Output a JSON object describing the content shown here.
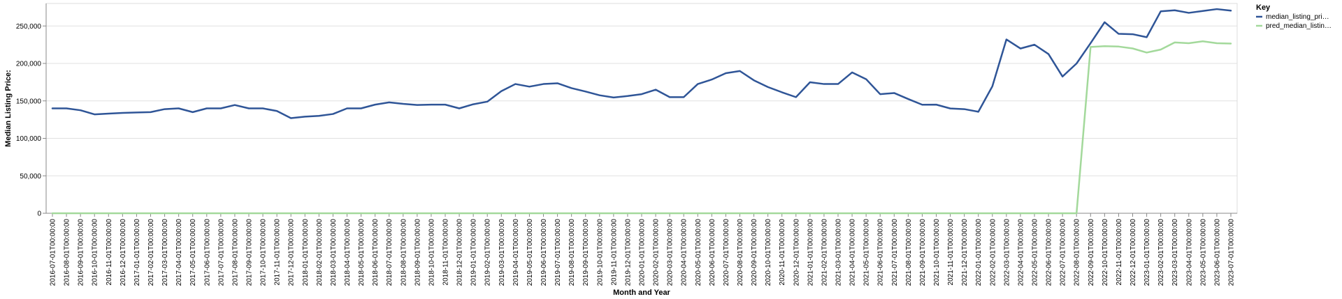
{
  "chart_data": {
    "type": "line",
    "xlabel": "Month and Year",
    "ylabel": "Median Listing Price:",
    "ylim": [
      0,
      280000
    ],
    "yticks": [
      0,
      50000,
      100000,
      150000,
      200000,
      250000
    ],
    "ytick_labels": [
      "0",
      "50,000",
      "100,000",
      "150,000",
      "200,000",
      "250,000"
    ],
    "grid": true,
    "legend": {
      "title": "Key",
      "placement": "top-right",
      "entries": [
        {
          "label": "median_listing_pri…",
          "color": "#2f5597"
        },
        {
          "label": "pred_median_listin…",
          "color": "#a3d99b"
        }
      ]
    },
    "x": [
      "2016-07-01T00:00:00",
      "2016-08-01T00:00:00",
      "2016-09-01T00:00:00",
      "2016-10-01T00:00:00",
      "2016-11-01T00:00:00",
      "2016-12-01T00:00:00",
      "2017-01-01T00:00:00",
      "2017-02-01T00:00:00",
      "2017-03-01T00:00:00",
      "2017-04-01T00:00:00",
      "2017-05-01T00:00:00",
      "2017-06-01T00:00:00",
      "2017-07-01T00:00:00",
      "2017-08-01T00:00:00",
      "2017-09-01T00:00:00",
      "2017-10-01T00:00:00",
      "2017-11-01T00:00:00",
      "2017-12-01T00:00:00",
      "2018-01-01T00:00:00",
      "2018-02-01T00:00:00",
      "2018-03-01T00:00:00",
      "2018-04-01T00:00:00",
      "2018-05-01T00:00:00",
      "2018-06-01T00:00:00",
      "2018-07-01T00:00:00",
      "2018-08-01T00:00:00",
      "2018-09-01T00:00:00",
      "2018-10-01T00:00:00",
      "2018-11-01T00:00:00",
      "2018-12-01T00:00:00",
      "2019-01-01T00:00:00",
      "2019-02-01T00:00:00",
      "2019-03-01T00:00:00",
      "2019-04-01T00:00:00",
      "2019-05-01T00:00:00",
      "2019-06-01T00:00:00",
      "2019-07-01T00:00:00",
      "2019-08-01T00:00:00",
      "2019-09-01T00:00:00",
      "2019-10-01T00:00:00",
      "2019-11-01T00:00:00",
      "2019-12-01T00:00:00",
      "2020-01-01T00:00:00",
      "2020-02-01T00:00:00",
      "2020-03-01T00:00:00",
      "2020-04-01T00:00:00",
      "2020-05-01T00:00:00",
      "2020-06-01T00:00:00",
      "2020-07-01T00:00:00",
      "2020-08-01T00:00:00",
      "2020-09-01T00:00:00",
      "2020-10-01T00:00:00",
      "2020-11-01T00:00:00",
      "2020-12-01T00:00:00",
      "2021-01-01T00:00:00",
      "2021-02-01T00:00:00",
      "2021-03-01T00:00:00",
      "2021-04-01T00:00:00",
      "2021-05-01T00:00:00",
      "2021-06-01T00:00:00",
      "2021-07-01T00:00:00",
      "2021-08-01T00:00:00",
      "2021-09-01T00:00:00",
      "2021-10-01T00:00:00",
      "2021-11-01T00:00:00",
      "2021-12-01T00:00:00",
      "2022-01-01T00:00:00",
      "2022-02-01T00:00:00",
      "2022-03-01T00:00:00",
      "2022-04-01T00:00:00",
      "2022-05-01T00:00:00",
      "2022-06-01T00:00:00",
      "2022-07-01T00:00:00",
      "2022-08-01T00:00:00",
      "2022-09-01T00:00:00",
      "2022-10-01T00:00:00",
      "2022-11-01T00:00:00",
      "2022-12-01T00:00:00",
      "2023-01-01T00:00:00",
      "2023-02-01T00:00:00",
      "2023-03-01T00:00:00",
      "2023-04-01T00:00:00",
      "2023-05-01T00:00:00",
      "2023-06-01T00:00:00",
      "2023-07-01T00:00:00"
    ],
    "series": [
      {
        "name": "median_listing_pri…",
        "color": "#2f5597",
        "values": [
          140000,
          140000,
          137500,
          132000,
          133000,
          134000,
          134500,
          135000,
          139000,
          140000,
          135000,
          140000,
          140000,
          144500,
          140000,
          140000,
          136500,
          127000,
          129000,
          130000,
          132500,
          140000,
          140000,
          145000,
          148000,
          146000,
          144500,
          145000,
          145000,
          140000,
          145500,
          149000,
          163000,
          172500,
          169000,
          172500,
          173500,
          167000,
          162500,
          157500,
          154500,
          156500,
          159000,
          165000,
          155000,
          155000,
          172500,
          178500,
          187000,
          189900,
          177500,
          168500,
          161500,
          155000,
          174900,
          172500,
          172500,
          188000,
          179000,
          159000,
          160500,
          152500,
          144900,
          145000,
          139900,
          139000,
          135500,
          169500,
          232000,
          219900,
          225000,
          212500,
          182500,
          199900,
          227000,
          255000,
          239500,
          239000,
          235000,
          269500,
          270900,
          267500,
          270000,
          272500,
          270500
        ]
      },
      {
        "name": "pred_median_listin…",
        "color": "#a3d99b",
        "values": [
          0,
          0,
          0,
          0,
          0,
          0,
          0,
          0,
          0,
          0,
          0,
          0,
          0,
          0,
          0,
          0,
          0,
          0,
          0,
          0,
          0,
          0,
          0,
          0,
          0,
          0,
          0,
          0,
          0,
          0,
          0,
          0,
          0,
          0,
          0,
          0,
          0,
          0,
          0,
          0,
          0,
          0,
          0,
          0,
          0,
          0,
          0,
          0,
          0,
          0,
          0,
          0,
          0,
          0,
          0,
          0,
          0,
          0,
          0,
          0,
          0,
          0,
          0,
          0,
          0,
          0,
          0,
          0,
          0,
          0,
          0,
          0,
          0,
          0,
          222000,
          223000,
          222500,
          220000,
          214500,
          218500,
          228000,
          227000,
          229500,
          227000,
          226500
        ]
      }
    ]
  }
}
